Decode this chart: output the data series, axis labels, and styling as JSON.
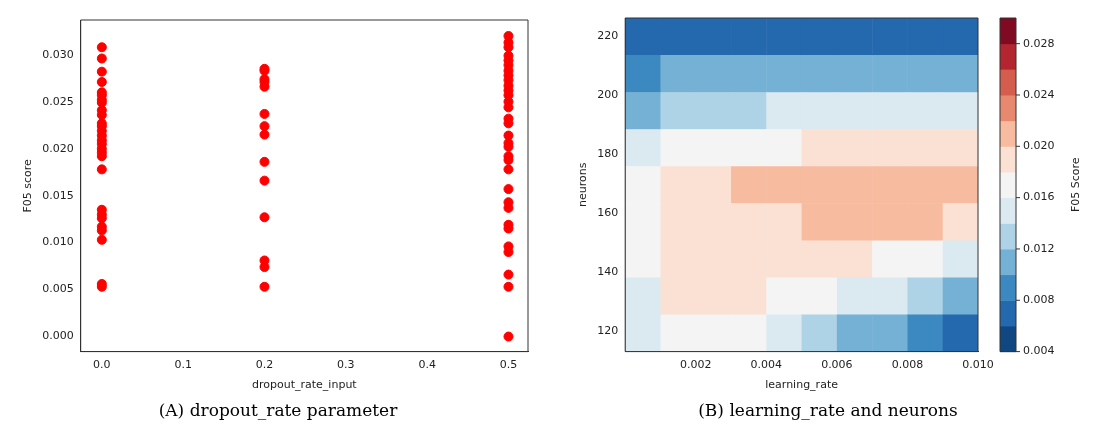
{
  "chart_data": [
    {
      "type": "scatter",
      "xlabel": "dropout_rate_input",
      "ylabel": "F05 score",
      "color": "#ff0000",
      "marker": "circle",
      "grid": false,
      "annotations": [
        "(A) dropout_rate parameter"
      ],
      "x": [
        0,
        0,
        0,
        0,
        0,
        0,
        0,
        0,
        0,
        0,
        0,
        0,
        0,
        0,
        0,
        0,
        0,
        0,
        0,
        0,
        0,
        0,
        0,
        0,
        0,
        0,
        0,
        0,
        0.2,
        0.2,
        0.2,
        0.2,
        0.2,
        0.2,
        0.2,
        0.2,
        0.2,
        0.2,
        0.2,
        0.2,
        0.2,
        0.2,
        0.5,
        0.5,
        0.5,
        0.5,
        0.5,
        0.5,
        0.5,
        0.5,
        0.5,
        0.5,
        0.5,
        0.5,
        0.5,
        0.5,
        0.5,
        0.5,
        0.5,
        0.5,
        0.5,
        0.5,
        0.5,
        0.5,
        0.5,
        0.5,
        0.5,
        0.5,
        0.5,
        0.5,
        0.5,
        0.5,
        0.5,
        0.5
      ],
      "values": [
        0.0308,
        0.0296,
        0.0282,
        0.0271,
        0.026,
        0.0257,
        0.0252,
        0.0249,
        0.0241,
        0.0236,
        0.0227,
        0.0224,
        0.0219,
        0.0214,
        0.0209,
        0.0205,
        0.02,
        0.0196,
        0.0192,
        0.0178,
        0.0135,
        0.013,
        0.0126,
        0.0117,
        0.0113,
        0.0103,
        0.0056,
        0.0053,
        0.0285,
        0.0283,
        0.0274,
        0.0271,
        0.0266,
        0.0237,
        0.0224,
        0.0215,
        0.0186,
        0.0166,
        0.0127,
        0.0081,
        0.0074,
        0.0053,
        0.032,
        0.0313,
        0.0308,
        0.0299,
        0.0294,
        0.0289,
        0.0283,
        0.0278,
        0.0273,
        0.0267,
        0.0262,
        0.0257,
        0.025,
        0.0244,
        0.0232,
        0.0227,
        0.0214,
        0.0206,
        0.0202,
        0.0192,
        0.0188,
        0.0178,
        0.0157,
        0.0143,
        0.0137,
        0.0119,
        0.0115,
        0.0096,
        0.009,
        0.0066,
        0.0053,
        0
      ],
      "xlim": [
        -0.026,
        0.524
      ],
      "xticks": [
        {
          "value": 0,
          "label": "0.0"
        },
        0.1,
        0.2,
        0.3,
        0.4,
        0.5
      ],
      "ylim": [
        -0.0016,
        0.0337
      ],
      "yticks": [
        {
          "value": 0,
          "label": "0.000"
        },
        0.005,
        {
          "value": 0.01,
          "label": "0.010"
        },
        0.015,
        {
          "value": 0.02,
          "label": "0.020"
        },
        0.025,
        {
          "value": 0.03,
          "label": "0.030"
        }
      ]
    },
    {
      "type": "heatmap",
      "xlabel": "learning_rate",
      "ylabel": "neurons",
      "clabel": "F05 Score",
      "annotations": [
        "(B) learning_rate and neurons"
      ],
      "x": [
        0.0005,
        0.0015,
        0.0025,
        0.0035,
        0.0045,
        0.0055,
        0.0065,
        0.0075,
        0.0085,
        0.0095
      ],
      "cells": [
        [
          0.007,
          0.007,
          0.007,
          0.007,
          0.007,
          0.007,
          0.007,
          0.007,
          0.007,
          0.007
        ],
        [
          0.009,
          0.011,
          0.011,
          0.011,
          0.011,
          0.011,
          0.011,
          0.011,
          0.011,
          0.011
        ],
        [
          0.011,
          0.013,
          0.013,
          0.013,
          0.015,
          0.015,
          0.015,
          0.015,
          0.015,
          0.015
        ],
        [
          0.015,
          0.017,
          0.017,
          0.017,
          0.017,
          0.019,
          0.019,
          0.019,
          0.019,
          0.019
        ],
        [
          0.017,
          0.019,
          0.019,
          0.021,
          0.021,
          0.021,
          0.021,
          0.021,
          0.021,
          0.021
        ],
        [
          0.017,
          0.019,
          0.019,
          0.019,
          0.019,
          0.021,
          0.021,
          0.021,
          0.021,
          0.019
        ],
        [
          0.017,
          0.019,
          0.019,
          0.019,
          0.019,
          0.019,
          0.019,
          0.017,
          0.017,
          0.015
        ],
        [
          0.015,
          0.019,
          0.019,
          0.019,
          0.017,
          0.017,
          0.015,
          0.015,
          0.013,
          0.011
        ],
        [
          0.015,
          0.017,
          0.017,
          0.017,
          0.015,
          0.013,
          0.011,
          0.011,
          0.009,
          0.007
        ]
      ],
      "colors": [
        "#114781",
        "#2468ae",
        "#3b89c0",
        "#75b1d5",
        "#aed2e6",
        "#dbe9f1",
        "#f4f4f4",
        "#fbe1d3",
        "#f7bba0",
        "#e7896f",
        "#d45d4e",
        "#b3262f",
        "#7f0a22"
      ],
      "xlim": [
        0,
        0.01
      ],
      "xticks": [
        0.002,
        0.004,
        0.006,
        0.008,
        {
          "value": 0.01,
          "label": "0.010"
        }
      ],
      "ylim": [
        113,
        226
      ],
      "yticks": [
        120,
        140,
        160,
        180,
        200,
        220
      ],
      "clim": [
        0.004,
        0.03
      ],
      "cticks": [
        0.004,
        0.008,
        0.012,
        0.016,
        {
          "value": 0.02,
          "label": "0.020"
        },
        0.024,
        0.028
      ]
    }
  ]
}
